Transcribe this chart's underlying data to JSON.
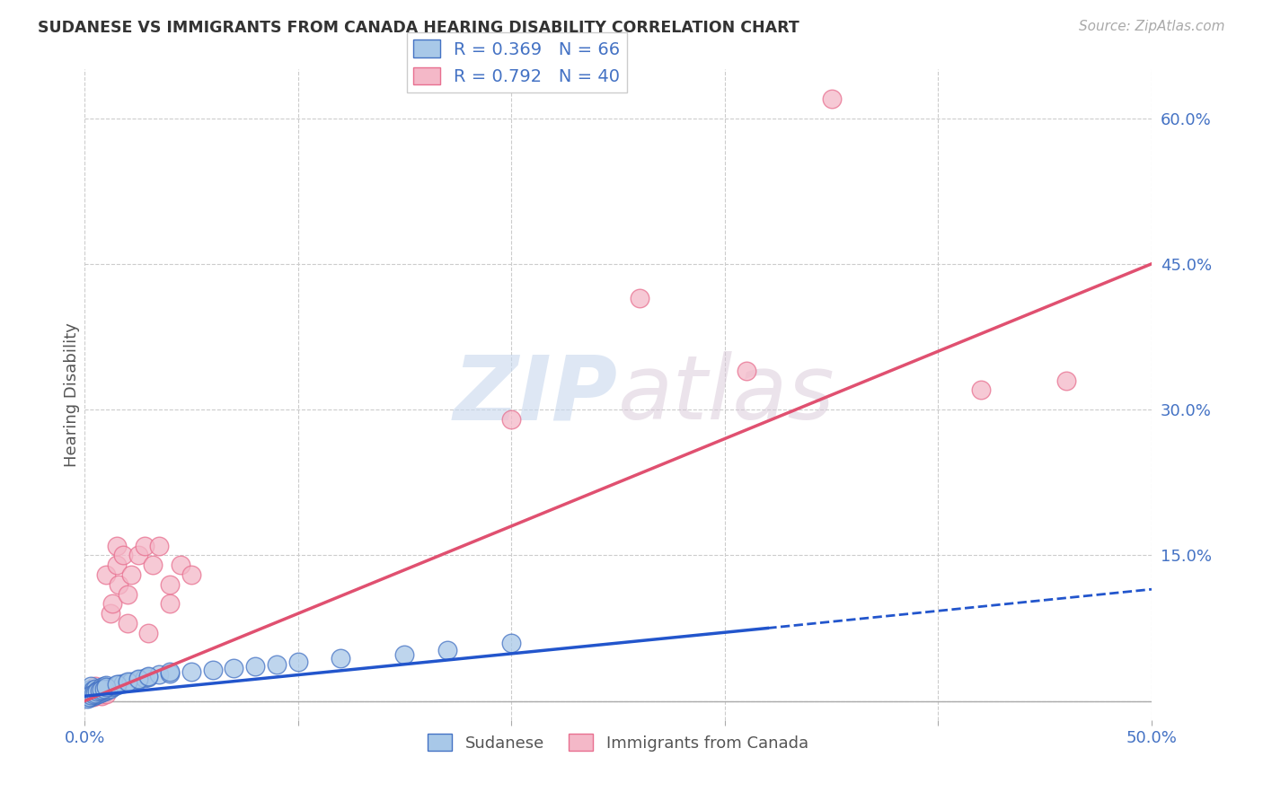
{
  "title": "SUDANESE VS IMMIGRANTS FROM CANADA HEARING DISABILITY CORRELATION CHART",
  "source": "Source: ZipAtlas.com",
  "xlabel_color": "#4472c4",
  "ylabel": "Hearing Disability",
  "xlim": [
    0.0,
    0.5
  ],
  "ylim": [
    -0.02,
    0.65
  ],
  "x_ticks": [
    0.0,
    0.1,
    0.2,
    0.3,
    0.4,
    0.5
  ],
  "x_tick_labels": [
    "0.0%",
    "",
    "",
    "",
    "",
    "50.0%"
  ],
  "y_ticks": [
    0.0,
    0.15,
    0.3,
    0.45,
    0.6
  ],
  "y_tick_labels": [
    "",
    "15.0%",
    "30.0%",
    "45.0%",
    "60.0%"
  ],
  "grid_color": "#cccccc",
  "watermark_zip": "ZIP",
  "watermark_atlas": "atlas",
  "sudanese_color": "#a8c8e8",
  "canada_color": "#f4b8c8",
  "sudanese_edge_color": "#4472c4",
  "canada_edge_color": "#e87090",
  "sudanese_line_color": "#2255cc",
  "canada_line_color": "#e05070",
  "legend_r1": "R = 0.369",
  "legend_n1": "N = 66",
  "legend_r2": "R = 0.792",
  "legend_n2": "N = 40",
  "sudanese_x": [
    0.001,
    0.001,
    0.001,
    0.002,
    0.002,
    0.002,
    0.002,
    0.003,
    0.003,
    0.003,
    0.003,
    0.004,
    0.004,
    0.004,
    0.005,
    0.005,
    0.005,
    0.006,
    0.006,
    0.007,
    0.007,
    0.008,
    0.008,
    0.009,
    0.009,
    0.01,
    0.01,
    0.011,
    0.012,
    0.013,
    0.014,
    0.015,
    0.016,
    0.018,
    0.02,
    0.022,
    0.025,
    0.028,
    0.03,
    0.035,
    0.04,
    0.05,
    0.06,
    0.07,
    0.08,
    0.09,
    0.1,
    0.12,
    0.15,
    0.17,
    0.001,
    0.002,
    0.003,
    0.004,
    0.005,
    0.006,
    0.007,
    0.008,
    0.009,
    0.01,
    0.015,
    0.02,
    0.025,
    0.03,
    0.04,
    0.2
  ],
  "sudanese_y": [
    0.005,
    0.008,
    0.01,
    0.003,
    0.006,
    0.009,
    0.012,
    0.004,
    0.007,
    0.01,
    0.015,
    0.005,
    0.008,
    0.012,
    0.006,
    0.009,
    0.013,
    0.007,
    0.011,
    0.008,
    0.012,
    0.009,
    0.014,
    0.01,
    0.015,
    0.011,
    0.016,
    0.012,
    0.013,
    0.014,
    0.015,
    0.016,
    0.017,
    0.018,
    0.019,
    0.02,
    0.022,
    0.024,
    0.025,
    0.027,
    0.028,
    0.03,
    0.032,
    0.034,
    0.036,
    0.038,
    0.04,
    0.044,
    0.048,
    0.052,
    0.002,
    0.004,
    0.006,
    0.007,
    0.008,
    0.01,
    0.011,
    0.012,
    0.013,
    0.014,
    0.017,
    0.02,
    0.023,
    0.026,
    0.03,
    0.06
  ],
  "canada_x": [
    0.001,
    0.002,
    0.002,
    0.003,
    0.004,
    0.004,
    0.005,
    0.005,
    0.006,
    0.007,
    0.007,
    0.008,
    0.008,
    0.009,
    0.01,
    0.01,
    0.012,
    0.013,
    0.015,
    0.015,
    0.016,
    0.018,
    0.02,
    0.02,
    0.022,
    0.025,
    0.028,
    0.03,
    0.032,
    0.035,
    0.04,
    0.04,
    0.045,
    0.05,
    0.2,
    0.26,
    0.31,
    0.35,
    0.42,
    0.46
  ],
  "canada_y": [
    0.01,
    0.005,
    0.008,
    0.006,
    0.004,
    0.012,
    0.007,
    0.015,
    0.008,
    0.006,
    0.01,
    0.005,
    0.012,
    0.008,
    0.007,
    0.13,
    0.09,
    0.1,
    0.14,
    0.16,
    0.12,
    0.15,
    0.08,
    0.11,
    0.13,
    0.15,
    0.16,
    0.07,
    0.14,
    0.16,
    0.1,
    0.12,
    0.14,
    0.13,
    0.29,
    0.415,
    0.34,
    0.62,
    0.32,
    0.33
  ],
  "sud_line_x0": 0.0,
  "sud_line_x1": 0.32,
  "sud_line_x2": 0.5,
  "sud_line_y0": 0.005,
  "sud_line_y1": 0.075,
  "sud_line_y2": 0.115,
  "can_line_x0": 0.0,
  "can_line_x1": 0.5,
  "can_line_y0": 0.0,
  "can_line_y1": 0.45
}
